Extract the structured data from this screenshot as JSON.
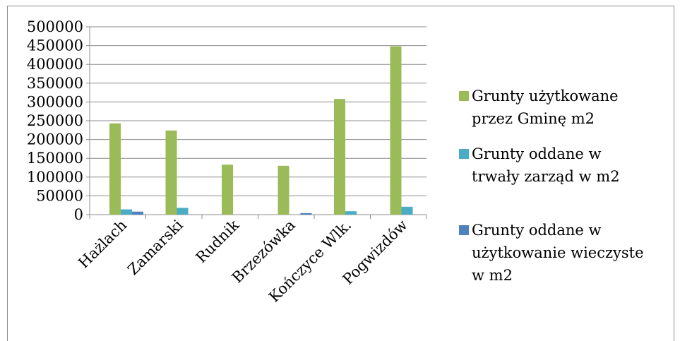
{
  "chart_data": {
    "type": "bar",
    "categories": [
      "Hażlach",
      "Zamarski",
      "Rudnik",
      "Brzezówka",
      "Kończyce Wlk.",
      "Pogwizdów"
    ],
    "series": [
      {
        "name": "Grunty użytkowane przez Gminę m2",
        "color": "#9bbb59",
        "values": [
          243000,
          224000,
          133000,
          130000,
          308000,
          448000
        ]
      },
      {
        "name": "Grunty oddane w trwały zarząd w m2",
        "color": "#4bacc6",
        "values": [
          14000,
          18000,
          0,
          0,
          9000,
          21000
        ]
      },
      {
        "name": "Grunty oddane w użytkowanie wieczyste w m2",
        "color": "#4f81bd",
        "values": [
          8000,
          0,
          0,
          4000,
          0,
          0
        ]
      }
    ],
    "yticks": [
      "500000",
      "450000",
      "400000",
      "350000",
      "300000",
      "250000",
      "200000",
      "150000",
      "100000",
      "50000",
      "0"
    ],
    "ylim": [
      0,
      500000
    ],
    "grid": true,
    "legend_position": "right"
  },
  "legend": {
    "items": [
      {
        "lines": [
          "Grunty użytkowane",
          "przez Gminę m2"
        ]
      },
      {
        "lines": [
          "Grunty oddane w",
          "trwały zarząd w m2"
        ]
      },
      {
        "lines": [
          "Grunty oddane w",
          "użytkowanie wieczyste",
          "w m2"
        ]
      }
    ]
  }
}
